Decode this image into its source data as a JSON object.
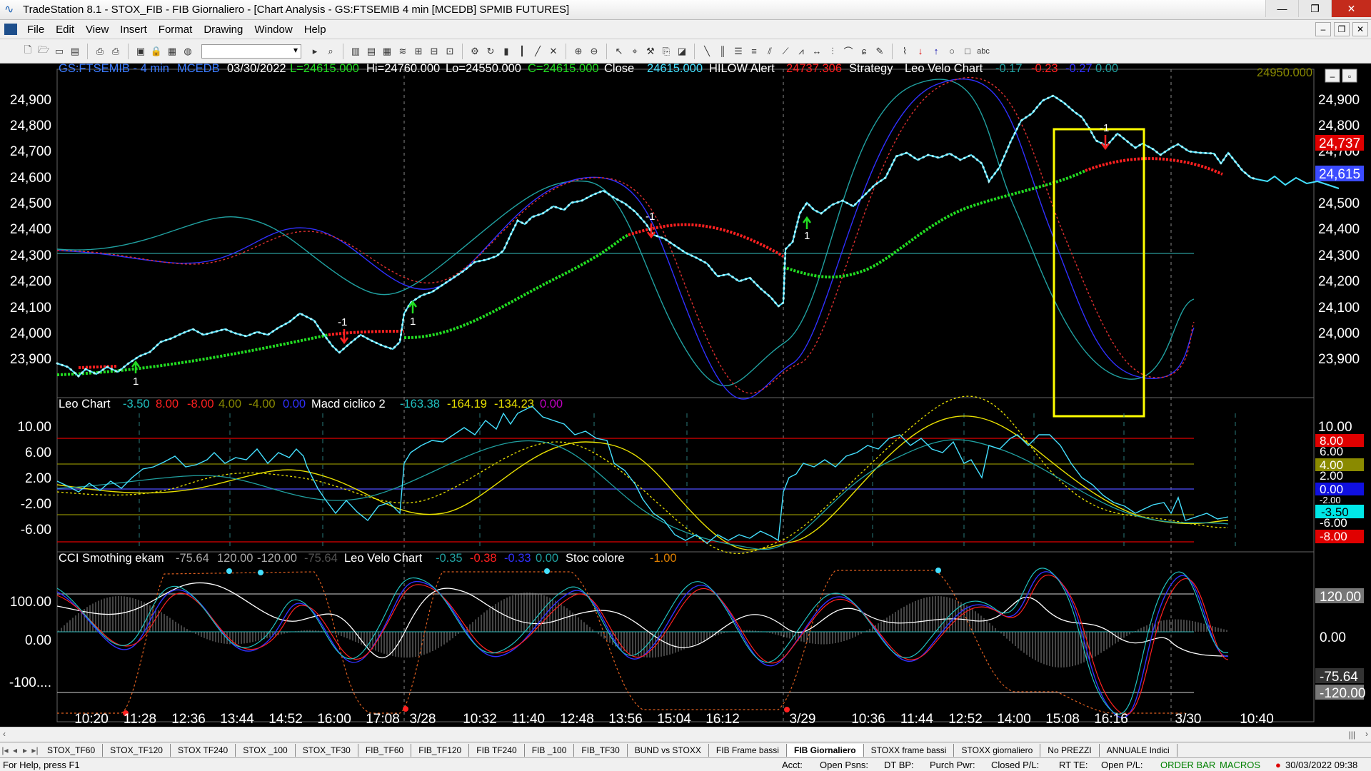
{
  "window": {
    "title": "TradeStation 8.1 - STOX_FIB - FIB Giornaliero - [Chart Analysis - GS:FTSEMIB  4 min  [MCEDB] SPMIB FUTURES]"
  },
  "menu": [
    "File",
    "Edit",
    "View",
    "Insert",
    "Format",
    "Drawing",
    "Window",
    "Help"
  ],
  "header": {
    "symbol": "GS:FTSEMIB - 4 min",
    "feed": "MCEDB",
    "date": "03/30/2022",
    "low": "L=24615.000",
    "high": "Hi=24760.000",
    "lo": "Lo=24550.000",
    "close": "C=24615.000",
    "close_label": "Close",
    "close_val": "24615.000",
    "hilow_label": "HILOW Alert",
    "hilow_val": "24737.306",
    "strategy_label": "Strategy",
    "leo_label": "Leo Velo Chart",
    "leo_v1": "-0.17",
    "leo_v2": "-0.23",
    "leo_v3": "-0.27",
    "leo_v4": "0.00",
    "corner_value": "24950.000"
  },
  "colors": {
    "price_line": "#44e0ff",
    "green_avg": "#22dd22",
    "red_avg": "#ff2020",
    "blue_cycle": "#3030ff",
    "teal_cycle": "#20a0a0",
    "yellow": "#e8e000",
    "yellow_box": "#ffff00",
    "grid_text": "#ffffff"
  },
  "price_panel": {
    "y_ticks": [
      "24,900",
      "24,800",
      "24,700",
      "24,600",
      "24,500",
      "24,400",
      "24,300",
      "24,200",
      "24,100",
      "24,000",
      "23,900"
    ],
    "badge_hilow": "24,737",
    "badge_last": "24,615",
    "markers": [
      {
        "label": "1",
        "kind": "buy"
      },
      {
        "label": "-1",
        "kind": "sell"
      },
      {
        "label": "1",
        "kind": "buy"
      },
      {
        "label": "-1",
        "kind": "sell"
      },
      {
        "label": "1",
        "kind": "buy"
      },
      {
        "label": "-1",
        "kind": "sell"
      }
    ]
  },
  "macd_panel": {
    "leo_label": "Leo Chart",
    "leo_vals": [
      "-3.50",
      "8.00",
      "-8.00",
      "4.00",
      "-4.00",
      "0.00"
    ],
    "macd_label": "Macd ciclico 2",
    "macd_vals": [
      "-163.38",
      "-164.19",
      "-134.23",
      "0.00"
    ],
    "y_ticks": [
      "10.00",
      "6.00",
      "2.00",
      "-2.00",
      "-6.00"
    ],
    "badges": [
      {
        "text": "8.00",
        "bg": "#e00000",
        "fg": "#ffffff"
      },
      {
        "text": "6.00",
        "bg": "#000000",
        "fg": "#ffffff"
      },
      {
        "text": "4.00",
        "bg": "#8a8a00",
        "fg": "#ffffff"
      },
      {
        "text": "2.00",
        "bg": "#000000",
        "fg": "#ffffff"
      },
      {
        "text": "0.00",
        "bg": "#1010e0",
        "fg": "#ffffff"
      },
      {
        "text": "-2.00",
        "bg": "#000000",
        "fg": "#ffffff"
      },
      {
        "text": "-3.50",
        "bg": "#00e8e8",
        "fg": "#000000"
      },
      {
        "text": "-6.00",
        "bg": "#000000",
        "fg": "#ffffff"
      },
      {
        "text": "-8.00",
        "bg": "#e00000",
        "fg": "#ffffff"
      }
    ]
  },
  "cci_panel": {
    "cci_label": "CCI Smothing ekam",
    "cci_vals": [
      "-75.64",
      "120.00",
      "-120.00",
      "-75.64"
    ],
    "leo_label": "Leo Velo Chart",
    "leo_vals": [
      "-0.35",
      "-0.38",
      "-0.33",
      "0.00"
    ],
    "stoc_label": "Stoc colore",
    "stoc_val": "-1.00",
    "y_ticks": [
      "100.00",
      "0.00",
      "-100...."
    ],
    "badges": [
      "120.00",
      "0.00",
      "-75.64",
      "-120.00"
    ]
  },
  "time_axis": [
    "10:20",
    "11:28",
    "12:36",
    "13:44",
    "14:52",
    "16:00",
    "17:08",
    "3/28",
    "10:32",
    "11:40",
    "12:48",
    "13:56",
    "15:04",
    "16:12",
    "3/29",
    "10:36",
    "11:44",
    "12:52",
    "14:00",
    "15:08",
    "16:16",
    "3/30",
    "10:40"
  ],
  "tabs": [
    "STOX_TF60",
    "STOX_TF120",
    "STOX TF240",
    "STOX _100",
    "STOX_TF30",
    "FIB_TF60",
    "FIB_TF120",
    "FIB TF240",
    "FIB _100",
    "FIB_TF30",
    "BUND vs STOXX",
    "FIB Frame bassi",
    "FIB Giornaliero",
    "STOXX frame bassi",
    "STOXX giornaliero",
    "No PREZZI",
    "ANNUALE Indici"
  ],
  "active_tab": "FIB Giornaliero",
  "status": {
    "help": "For Help, press F1",
    "acct": "Acct:",
    "open_psns": "Open Psns:",
    "dt_bp": "DT BP:",
    "purch_pwr": "Purch Pwr:",
    "closed_pl": "Closed P/L:",
    "rt_te": "RT TE:",
    "open_pl": "Open P/L:",
    "order_bar": "ORDER BAR",
    "macros": "MACROS",
    "datetime": "30/03/2022 09:38"
  }
}
